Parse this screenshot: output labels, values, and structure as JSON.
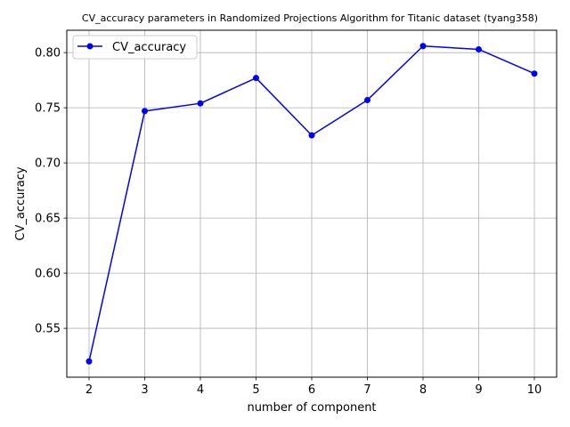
{
  "chart_data": {
    "type": "line",
    "title": "CV_accuracy parameters in Randomized Projections Algorithm for Titanic dataset (tyang358)",
    "xlabel": "number of component",
    "ylabel": "CV_accuracy",
    "x": [
      2,
      3,
      4,
      5,
      6,
      7,
      8,
      9,
      10
    ],
    "series": [
      {
        "name": "CV_accuracy",
        "values": [
          0.52,
          0.747,
          0.754,
          0.777,
          0.725,
          0.757,
          0.806,
          0.803,
          0.781
        ],
        "color": "#0000ff",
        "marker": "circle"
      }
    ],
    "xlim": [
      1.6,
      10.4
    ],
    "ylim": [
      0.5057,
      0.8203
    ],
    "xticks": [
      2,
      3,
      4,
      5,
      6,
      7,
      8,
      9,
      10
    ],
    "yticks": [
      0.55,
      0.6,
      0.65,
      0.7,
      0.75,
      0.8
    ],
    "ytick_labels": [
      "0.55",
      "0.60",
      "0.65",
      "0.70",
      "0.75",
      "0.80"
    ],
    "grid": true,
    "legend_position": "top-left"
  }
}
